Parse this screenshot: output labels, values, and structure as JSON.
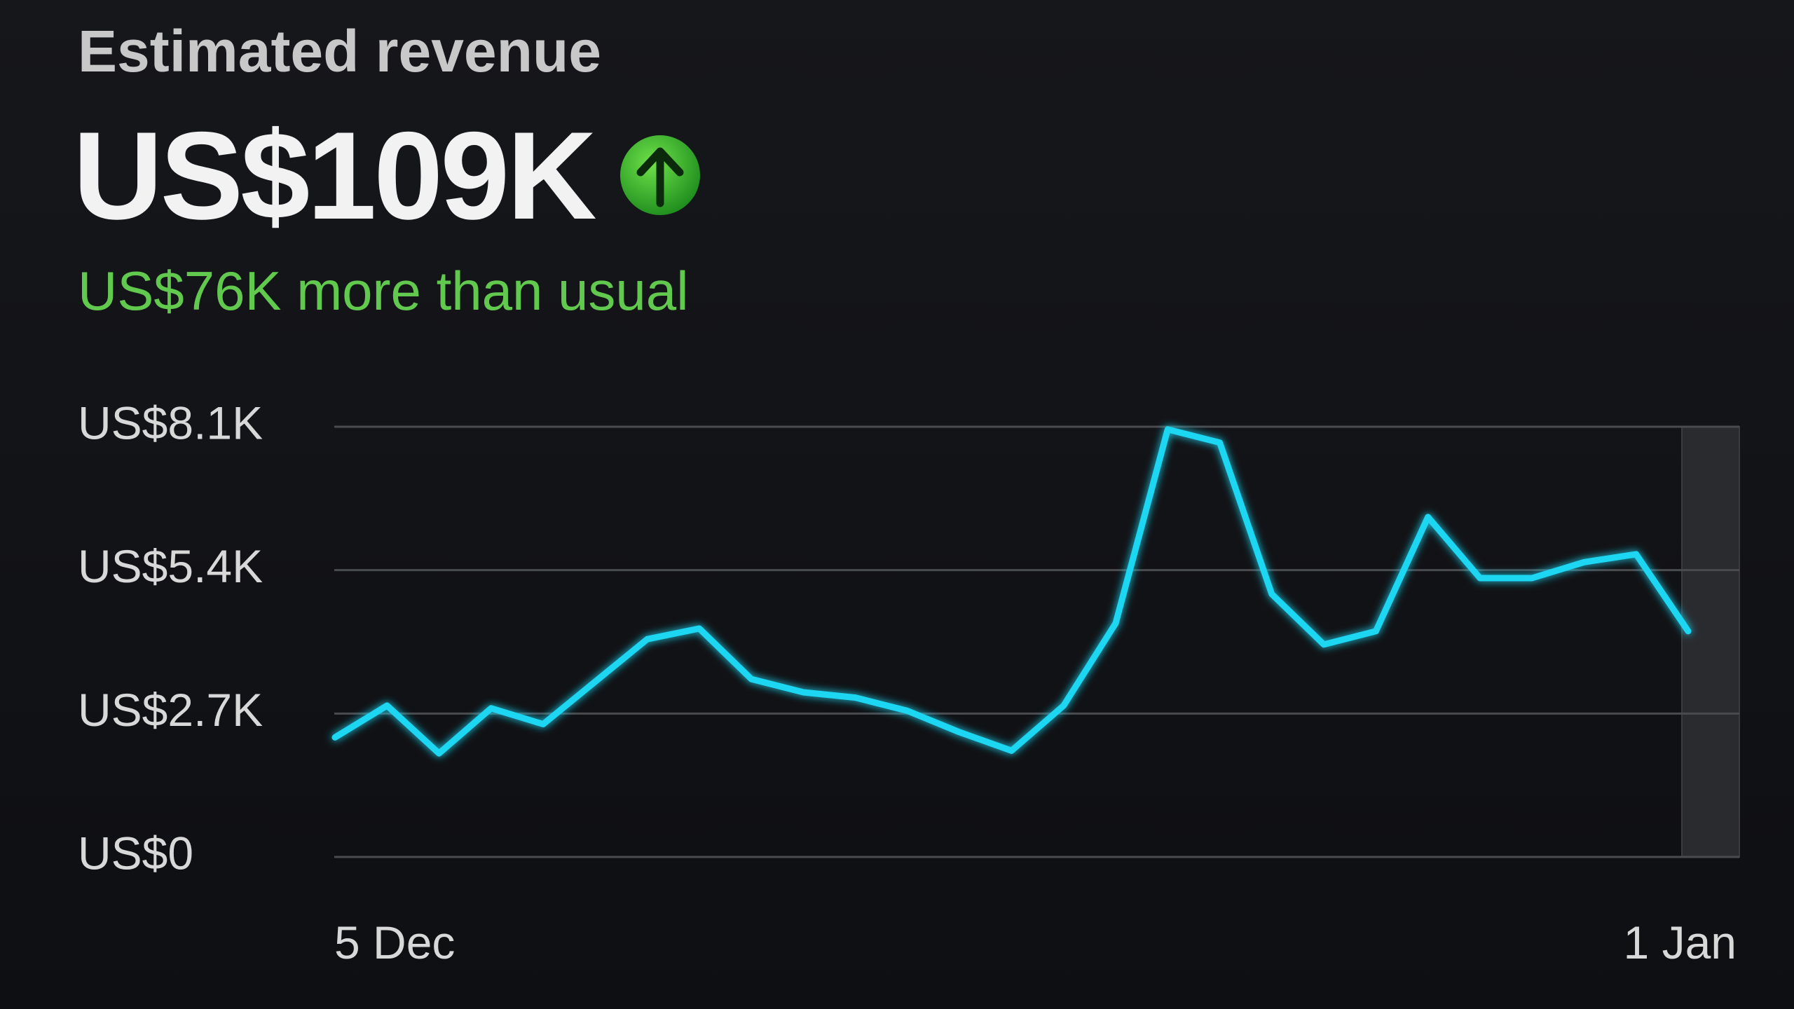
{
  "chart_data": {
    "type": "line",
    "title": "Estimated revenue",
    "headline": "US$109K",
    "subtitle": "US$76K more than usual",
    "categories": [
      "5 Dec",
      null,
      null,
      null,
      null,
      null,
      null,
      null,
      null,
      null,
      null,
      null,
      null,
      null,
      null,
      null,
      null,
      null,
      null,
      null,
      null,
      null,
      null,
      null,
      null,
      null,
      "1 Jan"
    ],
    "values": [
      2250,
      2850,
      1950,
      2800,
      2500,
      3300,
      4100,
      4300,
      3350,
      3100,
      3000,
      2750,
      2350,
      2000,
      2850,
      4400,
      8050,
      7800,
      4950,
      4000,
      4250,
      6400,
      5250,
      5250,
      5550,
      5700,
      4250
    ],
    "color": "#1fd6f2",
    "ylim": [
      0,
      8100
    ],
    "yticks": [
      {
        "value": 0,
        "label": "US$0"
      },
      {
        "value": 2700,
        "label": "US$2.7K"
      },
      {
        "value": 5400,
        "label": "US$5.4K"
      },
      {
        "value": 8100,
        "label": "US$8.1K"
      }
    ],
    "grid": true
  }
}
